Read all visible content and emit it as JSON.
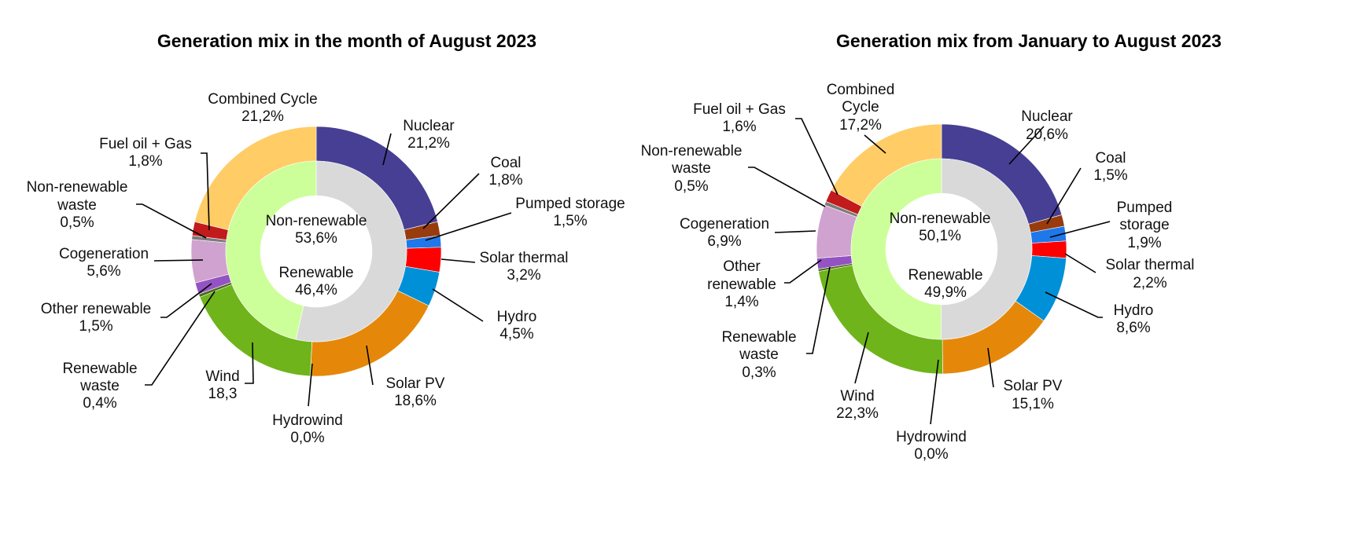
{
  "chart_data": [
    {
      "type": "donut",
      "title": "Generation mix in the month of August 2023",
      "inner": [
        {
          "name": "Non-renewable",
          "value": 53.6,
          "value_label": "53,6%",
          "color": "#d9d9d9"
        },
        {
          "name": "Renewable",
          "value": 46.4,
          "value_label": "46,4%",
          "color": "#ccff99"
        }
      ],
      "outer": [
        {
          "name": "Nuclear",
          "value": 21.2,
          "value_label": "21,2%",
          "color": "#463f94"
        },
        {
          "name": "Coal",
          "value": 1.8,
          "value_label": "1,8%",
          "color": "#983b0d"
        },
        {
          "name": "Pumped storage",
          "value": 1.5,
          "value_label": "1,5%",
          "color": "#1f78ea"
        },
        {
          "name": "Solar thermal",
          "value": 3.2,
          "value_label": "3,2%",
          "color": "#ff0000"
        },
        {
          "name": "Hydro",
          "value": 4.5,
          "value_label": "4,5%",
          "color": "#0090d8"
        },
        {
          "name": "Solar PV",
          "value": 18.6,
          "value_label": "18,6%",
          "color": "#e5880a"
        },
        {
          "name": "Hydrowind",
          "value": 0.0,
          "value_label": "0,0%",
          "color": "#0b5f8a"
        },
        {
          "name": "Wind",
          "value": 18.3,
          "value_label": "18,3",
          "color": "#6fb41a"
        },
        {
          "name": "Renewable waste",
          "value": 0.4,
          "value_label": "0,4%",
          "color": "#4a6d1b"
        },
        {
          "name": "Other renewable",
          "value": 1.5,
          "value_label": "1,5%",
          "color": "#9453c2"
        },
        {
          "name": "Cogeneration",
          "value": 5.6,
          "value_label": "5,6%",
          "color": "#cfa2cf"
        },
        {
          "name": "Non-renewable waste",
          "value": 0.5,
          "value_label": "0,5%",
          "color": "#7c7c7c"
        },
        {
          "name": "Fuel oil + Gas",
          "value": 1.8,
          "value_label": "1,8%",
          "color": "#c21b1b"
        },
        {
          "name": "Combined Cycle",
          "value": 21.2,
          "value_label": "21,2%",
          "color": "#ffcc66"
        }
      ]
    },
    {
      "type": "donut",
      "title": "Generation mix from January to August 2023",
      "inner": [
        {
          "name": "Non-renewable",
          "value": 50.1,
          "value_label": "50,1%",
          "color": "#d9d9d9"
        },
        {
          "name": "Renewable",
          "value": 49.9,
          "value_label": "49,9%",
          "color": "#ccff99"
        }
      ],
      "outer": [
        {
          "name": "Nuclear",
          "value": 20.6,
          "value_label": "20,6%",
          "color": "#463f94"
        },
        {
          "name": "Coal",
          "value": 1.5,
          "value_label": "1,5%",
          "color": "#983b0d"
        },
        {
          "name": "Pumped storage",
          "value": 1.9,
          "value_label": "1,9%",
          "color": "#1f78ea"
        },
        {
          "name": "Solar thermal",
          "value": 2.2,
          "value_label": "2,2%",
          "color": "#ff0000"
        },
        {
          "name": "Hydro",
          "value": 8.6,
          "value_label": "8,6%",
          "color": "#0090d8"
        },
        {
          "name": "Solar PV",
          "value": 15.1,
          "value_label": "15,1%",
          "color": "#e5880a"
        },
        {
          "name": "Hydrowind",
          "value": 0.0,
          "value_label": "0,0%",
          "color": "#0b5f8a"
        },
        {
          "name": "Wind",
          "value": 22.3,
          "value_label": "22,3%",
          "color": "#6fb41a"
        },
        {
          "name": "Renewable waste",
          "value": 0.3,
          "value_label": "0,3%",
          "color": "#4a6d1b"
        },
        {
          "name": "Other renewable",
          "value": 1.4,
          "value_label": "1,4%",
          "color": "#9453c2"
        },
        {
          "name": "Cogeneration",
          "value": 6.9,
          "value_label": "6,9%",
          "color": "#cfa2cf"
        },
        {
          "name": "Non-renewable waste",
          "value": 0.5,
          "value_label": "0,5%",
          "color": "#7c7c7c"
        },
        {
          "name": "Fuel oil + Gas",
          "value": 1.6,
          "value_label": "1,6%",
          "color": "#c21b1b"
        },
        {
          "name": "Combined Cycle",
          "value": 17.2,
          "value_label": "17,2%",
          "color": "#ffcc66"
        }
      ]
    }
  ]
}
